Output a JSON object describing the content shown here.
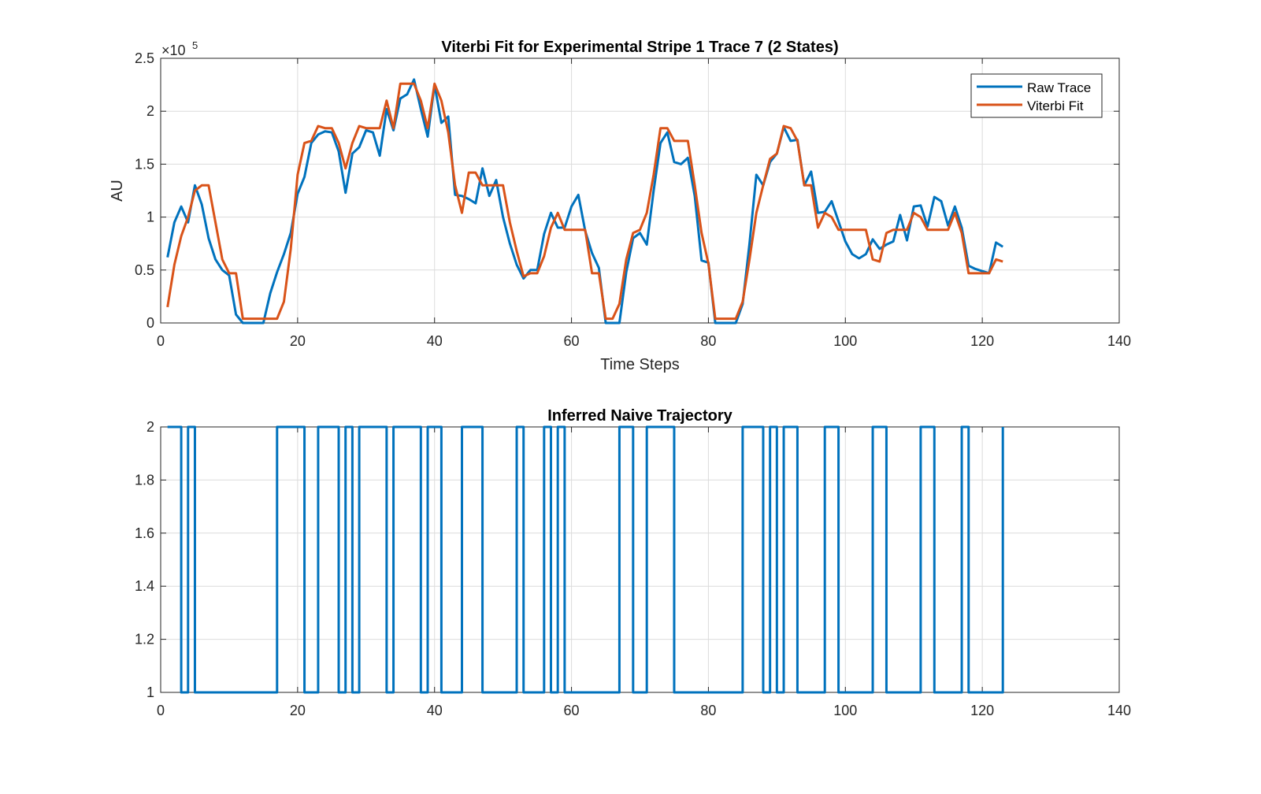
{
  "chart_data": [
    {
      "type": "line",
      "title": "Viterbi Fit for Experimental Stripe 1 Trace 7 (2 States)",
      "xlabel": "Time Steps",
      "ylabel": "AU",
      "exponent_label": "×10",
      "exponent_power": "5",
      "xlim": [
        0,
        140
      ],
      "ylim": [
        0,
        2.5
      ],
      "xticks": [
        "0",
        "20",
        "40",
        "60",
        "80",
        "100",
        "120",
        "140"
      ],
      "yticks": [
        "0",
        "0.5",
        "1",
        "1.5",
        "2",
        "2.5"
      ],
      "grid": true,
      "legend_position": "top-right",
      "x": [
        1,
        2,
        3,
        4,
        5,
        6,
        7,
        8,
        9,
        10,
        11,
        12,
        13,
        14,
        15,
        16,
        17,
        18,
        19,
        20,
        21,
        22,
        23,
        24,
        25,
        26,
        27,
        28,
        29,
        30,
        31,
        32,
        33,
        34,
        35,
        36,
        37,
        38,
        39,
        40,
        41,
        42,
        43,
        44,
        45,
        46,
        47,
        48,
        49,
        50,
        51,
        52,
        53,
        54,
        55,
        56,
        57,
        58,
        59,
        60,
        61,
        62,
        63,
        64,
        65,
        66,
        67,
        68,
        69,
        70,
        71,
        72,
        73,
        74,
        75,
        76,
        77,
        78,
        79,
        80,
        81,
        82,
        83,
        84,
        85,
        86,
        87,
        88,
        89,
        90,
        91,
        92,
        93,
        94,
        95,
        96,
        97,
        98,
        99,
        100,
        101,
        102,
        103,
        104,
        105,
        106,
        107,
        108,
        109,
        110,
        111,
        112,
        113,
        114,
        115,
        116,
        117,
        118,
        119,
        120,
        121,
        122,
        123
      ],
      "series": [
        {
          "name": "Raw Trace",
          "color": "#0072BD",
          "values": [
            0.62,
            0.95,
            1.1,
            0.95,
            1.3,
            1.12,
            0.8,
            0.6,
            0.5,
            0.45,
            0.08,
            0.0,
            0.0,
            0.0,
            0.0,
            0.28,
            0.48,
            0.65,
            0.85,
            1.22,
            1.38,
            1.7,
            1.78,
            1.81,
            1.8,
            1.62,
            1.23,
            1.6,
            1.66,
            1.82,
            1.8,
            1.58,
            2.02,
            1.82,
            2.12,
            2.16,
            2.3,
            2.02,
            1.76,
            2.25,
            1.89,
            1.95,
            1.21,
            1.2,
            1.17,
            1.13,
            1.46,
            1.2,
            1.35,
            1.0,
            0.75,
            0.55,
            0.42,
            0.5,
            0.5,
            0.84,
            1.04,
            0.9,
            0.9,
            1.1,
            1.21,
            0.87,
            0.66,
            0.52,
            0.0,
            0.0,
            0.0,
            0.48,
            0.8,
            0.85,
            0.74,
            1.25,
            1.7,
            1.8,
            1.52,
            1.5,
            1.56,
            1.2,
            0.59,
            0.57,
            0.0,
            0.0,
            0.0,
            0.0,
            0.18,
            0.75,
            1.4,
            1.3,
            1.52,
            1.6,
            1.85,
            1.72,
            1.73,
            1.3,
            1.43,
            1.04,
            1.05,
            1.15,
            0.96,
            0.77,
            0.65,
            0.61,
            0.65,
            0.79,
            0.7,
            0.74,
            0.77,
            1.02,
            0.78,
            1.1,
            1.11,
            0.91,
            1.19,
            1.15,
            0.92,
            1.1,
            0.9,
            0.54,
            0.51,
            0.49,
            0.47,
            0.76,
            0.72
          ]
        },
        {
          "name": "Viterbi Fit",
          "color": "#D95319",
          "values": [
            0.15,
            0.55,
            0.82,
            1.0,
            1.25,
            1.3,
            1.3,
            0.95,
            0.6,
            0.47,
            0.47,
            0.04,
            0.04,
            0.04,
            0.04,
            0.04,
            0.04,
            0.2,
            0.7,
            1.4,
            1.7,
            1.72,
            1.86,
            1.84,
            1.84,
            1.7,
            1.46,
            1.7,
            1.86,
            1.84,
            1.84,
            1.84,
            2.1,
            1.84,
            2.26,
            2.26,
            2.26,
            2.1,
            1.84,
            2.26,
            2.1,
            1.8,
            1.3,
            1.04,
            1.42,
            1.42,
            1.3,
            1.3,
            1.3,
            1.3,
            0.95,
            0.68,
            0.44,
            0.47,
            0.47,
            0.63,
            0.9,
            1.04,
            0.88,
            0.88,
            0.88,
            0.88,
            0.47,
            0.47,
            0.04,
            0.04,
            0.18,
            0.6,
            0.85,
            0.88,
            1.04,
            1.4,
            1.84,
            1.84,
            1.72,
            1.72,
            1.72,
            1.3,
            0.85,
            0.56,
            0.04,
            0.04,
            0.04,
            0.04,
            0.2,
            0.6,
            1.04,
            1.3,
            1.55,
            1.6,
            1.86,
            1.84,
            1.72,
            1.3,
            1.3,
            0.9,
            1.04,
            1.0,
            0.88,
            0.88,
            0.88,
            0.88,
            0.88,
            0.6,
            0.58,
            0.85,
            0.88,
            0.88,
            0.88,
            1.04,
            1.0,
            0.88,
            0.88,
            0.88,
            0.88,
            1.04,
            0.85,
            0.47,
            0.47,
            0.47,
            0.47,
            0.6,
            0.58
          ]
        }
      ]
    },
    {
      "type": "line",
      "title": "Inferred Naive Trajectory",
      "xlabel": "",
      "ylabel": "",
      "xlim": [
        0,
        140
      ],
      "ylim": [
        1,
        2
      ],
      "xticks": [
        "0",
        "20",
        "40",
        "60",
        "80",
        "100",
        "120",
        "140"
      ],
      "yticks": [
        "1",
        "1.2",
        "1.4",
        "1.6",
        "1.8",
        "2"
      ],
      "grid": true,
      "step": true,
      "x": [
        1,
        2,
        3,
        4,
        5,
        6,
        7,
        8,
        9,
        10,
        11,
        12,
        13,
        14,
        15,
        16,
        17,
        18,
        19,
        20,
        21,
        22,
        23,
        24,
        25,
        26,
        27,
        28,
        29,
        30,
        31,
        32,
        33,
        34,
        35,
        36,
        37,
        38,
        39,
        40,
        41,
        42,
        43,
        44,
        45,
        46,
        47,
        48,
        49,
        50,
        51,
        52,
        53,
        54,
        55,
        56,
        57,
        58,
        59,
        60,
        61,
        62,
        63,
        64,
        65,
        66,
        67,
        68,
        69,
        70,
        71,
        72,
        73,
        74,
        75,
        76,
        77,
        78,
        79,
        80,
        81,
        82,
        83,
        84,
        85,
        86,
        87,
        88,
        89,
        90,
        91,
        92,
        93,
        94,
        95,
        96,
        97,
        98,
        99,
        100,
        101,
        102,
        103,
        104,
        105,
        106,
        107,
        108,
        109,
        110,
        111,
        112,
        113,
        114,
        115,
        116,
        117,
        118,
        119,
        120,
        121,
        122,
        123
      ],
      "series": [
        {
          "color": "#0072BD",
          "values": [
            2,
            2,
            1,
            2,
            1,
            1,
            1,
            1,
            1,
            1,
            1,
            1,
            1,
            1,
            1,
            1,
            2,
            2,
            2,
            2,
            1,
            1,
            2,
            2,
            2,
            1,
            2,
            1,
            2,
            2,
            2,
            2,
            1,
            2,
            2,
            2,
            2,
            1,
            2,
            2,
            1,
            1,
            1,
            2,
            2,
            2,
            1,
            1,
            1,
            1,
            1,
            2,
            1,
            1,
            1,
            2,
            1,
            2,
            1,
            1,
            1,
            1,
            1,
            1,
            1,
            1,
            2,
            2,
            1,
            1,
            2,
            2,
            2,
            2,
            1,
            1,
            1,
            1,
            1,
            1,
            1,
            1,
            1,
            1,
            2,
            2,
            2,
            1,
            2,
            1,
            2,
            2,
            1,
            1,
            1,
            1,
            2,
            2,
            1,
            1,
            1,
            1,
            1,
            2,
            2,
            1,
            1,
            1,
            1,
            1,
            2,
            2,
            1,
            1,
            1,
            1,
            2,
            1,
            1,
            1,
            1,
            1,
            2
          ]
        }
      ]
    }
  ]
}
